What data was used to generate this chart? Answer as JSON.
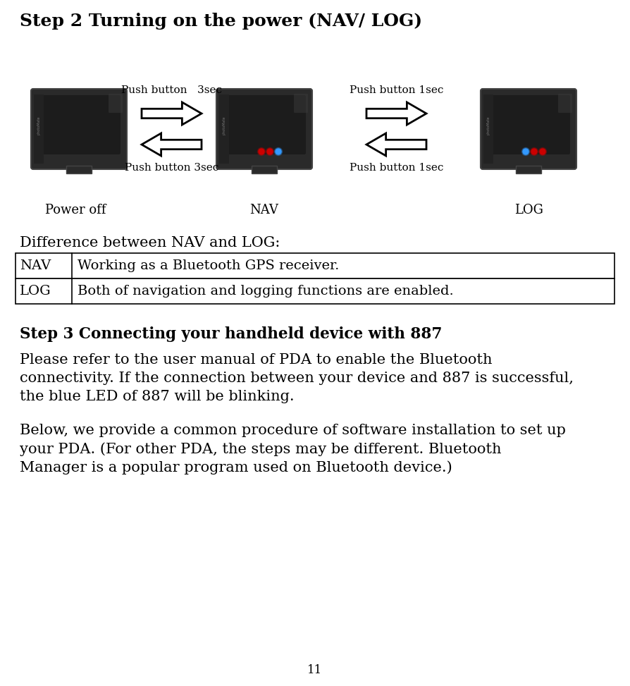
{
  "title": "Step 2 Turning on the power (NAV/ LOG)",
  "title_fontsize": 18,
  "bg_color": "#ffffff",
  "text_color": "#000000",
  "push_button_3sec_top": "Push button   3sec",
  "push_button_1sec_top": "Push button 1sec",
  "push_button_3sec_bot": "Push button 3sec",
  "push_button_1sec_bot": "Push button 1sec",
  "power_off_label": "Power off",
  "nav_label": "NAV",
  "log_label": "LOG",
  "diff_title": "Difference between NAV and LOG:",
  "table_rows": [
    [
      "NAV",
      "Working as a Bluetooth GPS receiver."
    ],
    [
      "LOG",
      "Both of navigation and logging functions are enabled."
    ]
  ],
  "step3_title": "Step 3 Connecting your handheld device with 887",
  "step3_para1_line1": "Please refer to the user manual of PDA to enable the Bluetooth",
  "step3_para1_line2": "connectivity. If the connection between your device and 887 is successful,",
  "step3_para1_line3": "the blue LED of 887 will be blinking.",
  "step3_para2_line1": "Below, we provide a common procedure of software installation to set up",
  "step3_para2_line2": "your PDA. (For other PDA, the steps may be different. Bluetooth",
  "step3_para2_line3": "Manager is a popular program used on Bluetooth device.)",
  "page_number": "11",
  "device_color_outer": "#2a2a2a",
  "device_color_inner": "#1c1c1c",
  "device_color_highlight": "#3a3a3a",
  "arrow_facecolor": "#ffffff",
  "arrow_edgecolor": "#000000",
  "font_family": "DejaVu Serif",
  "body_fontsize": 15,
  "label_fontsize": 13,
  "arrow_label_fontsize": 11
}
